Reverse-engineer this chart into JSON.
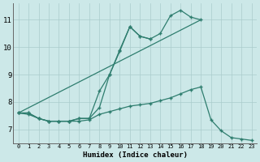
{
  "xlabel": "Humidex (Indice chaleur)",
  "color": "#2e7d6e",
  "bg_color": "#cce8e8",
  "grid_color": "#aacccc",
  "ylim": [
    6.5,
    11.6
  ],
  "xlim": [
    -0.5,
    23.5
  ],
  "yticks": [
    7,
    8,
    9,
    10,
    11
  ],
  "xticks": [
    0,
    1,
    2,
    3,
    4,
    5,
    6,
    7,
    8,
    9,
    10,
    11,
    12,
    13,
    14,
    15,
    16,
    17,
    18,
    19,
    20,
    21,
    22,
    23
  ],
  "curve_upper": {
    "x": [
      0,
      1,
      2,
      3,
      4,
      5,
      6,
      7,
      8,
      9,
      10,
      11,
      12,
      13,
      14,
      15,
      16,
      17,
      18
    ],
    "y": [
      7.6,
      7.6,
      7.4,
      7.3,
      7.3,
      7.3,
      7.4,
      7.4,
      7.8,
      9.0,
      9.9,
      10.75,
      10.4,
      10.3,
      10.5,
      11.15,
      11.35,
      11.1,
      11.0
    ]
  },
  "curve_zigzag": {
    "x": [
      0,
      1,
      2,
      3,
      4,
      5,
      6,
      7,
      8,
      9,
      10,
      11,
      12,
      13
    ],
    "y": [
      7.6,
      7.6,
      7.4,
      7.3,
      7.3,
      7.3,
      7.4,
      7.4,
      8.4,
      9.0,
      9.85,
      10.75,
      10.4,
      10.3
    ]
  },
  "curve_lower": {
    "x": [
      0,
      1,
      2,
      3,
      4,
      5,
      6,
      7,
      8,
      9,
      10,
      11,
      12,
      13,
      14,
      15,
      16,
      17,
      18,
      19,
      20,
      21,
      22,
      23
    ],
    "y": [
      7.6,
      7.55,
      7.4,
      7.3,
      7.3,
      7.3,
      7.3,
      7.35,
      7.55,
      7.65,
      7.75,
      7.85,
      7.9,
      7.95,
      8.05,
      8.15,
      8.3,
      8.45,
      8.55,
      7.35,
      6.95,
      6.7,
      6.65,
      6.6
    ]
  },
  "straight_line": {
    "x": [
      0,
      18
    ],
    "y": [
      7.6,
      11.0
    ]
  }
}
